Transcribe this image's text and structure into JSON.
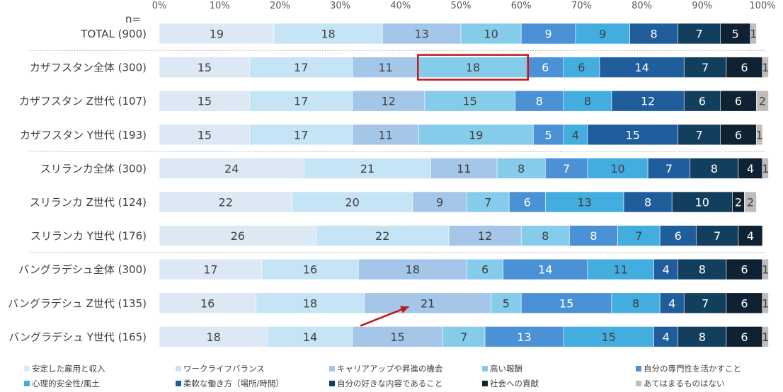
{
  "chart_data": {
    "type": "bar",
    "orientation": "horizontal",
    "stacked": true,
    "n_label": "n=",
    "xlim": [
      0,
      100
    ],
    "x_ticks": [
      "0%",
      "10%",
      "20%",
      "30%",
      "40%",
      "50%",
      "60%",
      "70%",
      "80%",
      "90%",
      "100%"
    ],
    "categories": [
      "TOTAL (900)",
      "カザフスタン全体 (300)",
      "カザフスタン Z世代 (107)",
      "カザフスタン Y世代 (193)",
      "スリランカ全体 (300)",
      "スリランカ Z世代 (124)",
      "スリランカ Y世代 (176)",
      "バングラデシュ全体 (300)",
      "バングラデシュ Z世代 (135)",
      "バングラデシュ Y世代 (165)"
    ],
    "group_separators_after": [
      0,
      3,
      6
    ],
    "series": [
      {
        "name": "安定した雇用と収入",
        "color": "#dde8f5",
        "values": [
          19,
          15,
          15,
          15,
          24,
          22,
          26,
          17,
          16,
          18
        ]
      },
      {
        "name": "ワークライフバランス",
        "color": "#c5e4f5",
        "values": [
          18,
          17,
          17,
          17,
          21,
          20,
          22,
          16,
          18,
          14
        ]
      },
      {
        "name": "キャリアアップや昇進の機会",
        "color": "#a4c6e9",
        "values": [
          13,
          11,
          12,
          11,
          11,
          9,
          12,
          18,
          21,
          15
        ]
      },
      {
        "name": "高い報酬",
        "color": "#85cbea",
        "values": [
          10,
          18,
          15,
          19,
          8,
          7,
          8,
          6,
          5,
          7
        ]
      },
      {
        "name": "自分の専門性を活かすこと",
        "color": "#4b91d5",
        "values": [
          9,
          6,
          8,
          5,
          7,
          6,
          8,
          14,
          15,
          13
        ]
      },
      {
        "name": "心理的安全性/風土",
        "color": "#43addf",
        "values": [
          9,
          6,
          8,
          4,
          10,
          13,
          7,
          11,
          8,
          15
        ]
      },
      {
        "name": "柔軟な働き方（場所/時間）",
        "color": "#1f5d9c",
        "values": [
          8,
          14,
          12,
          15,
          7,
          8,
          6,
          4,
          4,
          4
        ]
      },
      {
        "name": "自分の好きな内容であること",
        "color": "#133f5e",
        "values": [
          7,
          7,
          6,
          7,
          8,
          10,
          7,
          8,
          7,
          8
        ]
      },
      {
        "name": "社会への貢献",
        "color": "#0e2233",
        "values": [
          5,
          6,
          6,
          6,
          4,
          2,
          4,
          6,
          6,
          6
        ]
      },
      {
        "name": "あてはまるものはない",
        "color": "#bdbdbd",
        "values": [
          1,
          1,
          2,
          1,
          1,
          2,
          0,
          1,
          1,
          1
        ]
      }
    ],
    "highlight": {
      "category_index": 1,
      "series_index": 3,
      "color": "#c0141c"
    },
    "arrow": {
      "from_category_index": 9,
      "to_category_index": 8,
      "to_series_index": 2,
      "color": "#c0141c"
    }
  }
}
